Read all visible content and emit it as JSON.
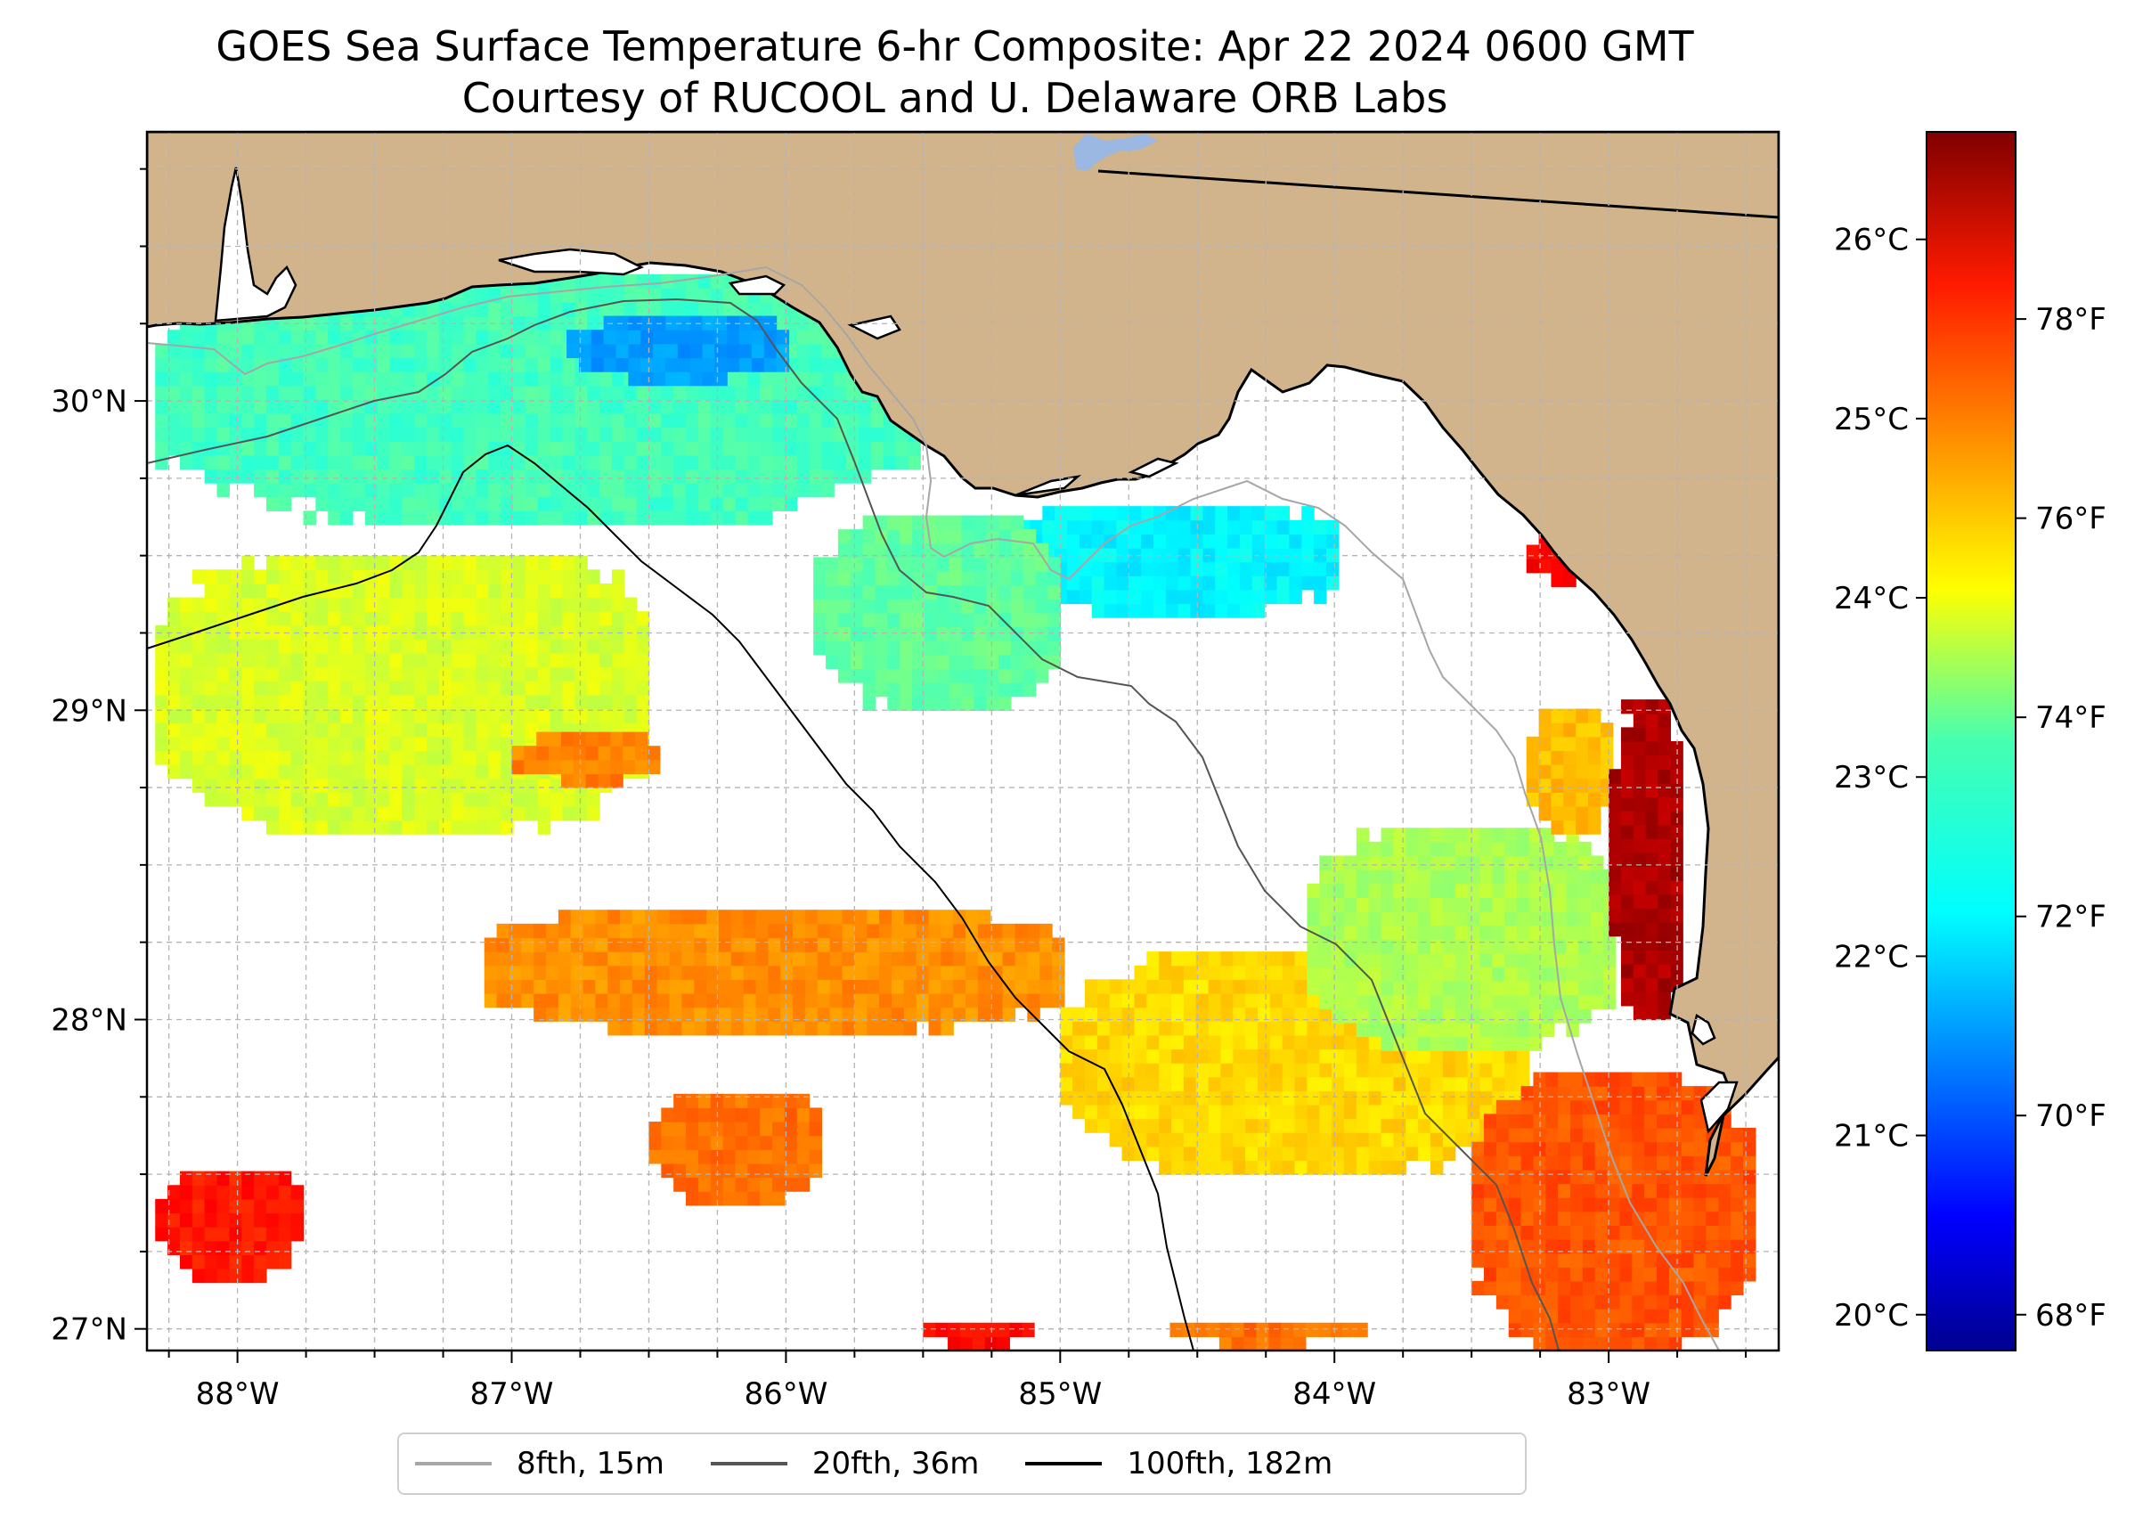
{
  "title": {
    "line1": "GOES Sea Surface Temperature 6-hr Composite: Apr 22 2024 0600 GMT",
    "line2": "Courtesy of RUCOOL and U. Delaware ORB Labs"
  },
  "map": {
    "lon_range": [
      -88.33,
      -82.38
    ],
    "lat_range": [
      26.93,
      30.87
    ],
    "lon_ticks": [
      {
        "value": -88,
        "label": "88°W"
      },
      {
        "value": -87,
        "label": "87°W"
      },
      {
        "value": -86,
        "label": "86°W"
      },
      {
        "value": -85,
        "label": "85°W"
      },
      {
        "value": -84,
        "label": "84°W"
      },
      {
        "value": -83,
        "label": "83°W"
      }
    ],
    "lat_ticks": [
      {
        "value": 27,
        "label": "27°N"
      },
      {
        "value": 28,
        "label": "28°N"
      },
      {
        "value": 29,
        "label": "29°N"
      },
      {
        "value": 30,
        "label": "30°N"
      }
    ],
    "grid": true,
    "colors": {
      "land": "#d2b48c",
      "water": "#ffffff",
      "lake": "#9ab8e2",
      "grid": "#b4b4b4",
      "coastline": "#000000"
    }
  },
  "colorbar": {
    "colormap": "jet",
    "range_c": [
      19.8,
      26.6
    ],
    "celsius_ticks": [
      {
        "value": 20,
        "label": "20°C"
      },
      {
        "value": 21,
        "label": "21°C"
      },
      {
        "value": 22,
        "label": "22°C"
      },
      {
        "value": 23,
        "label": "23°C"
      },
      {
        "value": 24,
        "label": "24°C"
      },
      {
        "value": 25,
        "label": "25°C"
      },
      {
        "value": 26,
        "label": "26°C"
      }
    ],
    "fahrenheit_ticks": [
      {
        "value": 68,
        "label": "68°F"
      },
      {
        "value": 70,
        "label": "70°F"
      },
      {
        "value": 72,
        "label": "72°F"
      },
      {
        "value": 74,
        "label": "74°F"
      },
      {
        "value": 76,
        "label": "76°F"
      },
      {
        "value": 78,
        "label": "78°F"
      }
    ]
  },
  "legend": {
    "items": [
      {
        "label": "8fth, 15m",
        "color": "#a6a6a6"
      },
      {
        "label": "20fth, 36m",
        "color": "#555555"
      },
      {
        "label": "100fth, 182m",
        "color": "#000000"
      }
    ]
  },
  "chart_data": {
    "type": "heatmap",
    "title": "GOES Sea Surface Temperature 6-hr Composite: Apr 22 2024 0600 GMT",
    "subtitle": "Courtesy of RUCOOL and U. Delaware ORB Labs",
    "units": "°C",
    "xlim": [
      -88.33,
      -82.38
    ],
    "ylim": [
      26.93,
      30.87
    ],
    "colorbar_range": [
      19.8,
      26.6
    ],
    "grid": true,
    "legend_position": "bottom-center",
    "sst_regions": [
      {
        "lon": [
          -88.3,
          -85.5
        ],
        "lat": [
          29.6,
          30.4
        ],
        "sst_c": 22.8
      },
      {
        "lon": [
          -86.8,
          -86.0
        ],
        "lat": [
          30.05,
          30.25
        ],
        "sst_c": 21.7
      },
      {
        "lon": [
          -85.2,
          -84.0
        ],
        "lat": [
          29.3,
          29.65
        ],
        "sst_c": 22.3
      },
      {
        "lon": [
          -85.9,
          -85.0
        ],
        "lat": [
          29.0,
          29.6
        ],
        "sst_c": 23.0
      },
      {
        "lon": [
          -88.3,
          -86.5
        ],
        "lat": [
          28.6,
          29.5
        ],
        "sst_c": 23.8
      },
      {
        "lon": [
          -87.0,
          -86.5
        ],
        "lat": [
          28.75,
          28.9
        ],
        "sst_c": 24.9
      },
      {
        "lon": [
          -87.1,
          -85.0
        ],
        "lat": [
          27.95,
          28.35
        ],
        "sst_c": 24.8
      },
      {
        "lon": [
          -86.5,
          -85.9
        ],
        "lat": [
          27.4,
          27.75
        ],
        "sst_c": 25.0
      },
      {
        "lon": [
          -85.0,
          -83.3
        ],
        "lat": [
          27.5,
          28.2
        ],
        "sst_c": 24.3
      },
      {
        "lon": [
          -84.1,
          -83.0
        ],
        "lat": [
          27.9,
          28.6
        ],
        "sst_c": 23.5
      },
      {
        "lon": [
          -83.3,
          -83.0
        ],
        "lat": [
          28.6,
          29.0
        ],
        "sst_c": 24.5
      },
      {
        "lon": [
          -83.0,
          -82.75
        ],
        "lat": [
          28.0,
          29.0
        ],
        "sst_c": 26.3
      },
      {
        "lon": [
          -83.5,
          -82.5
        ],
        "lat": [
          26.93,
          27.8
        ],
        "sst_c": 25.2
      },
      {
        "lon": [
          -88.3,
          -87.8
        ],
        "lat": [
          27.15,
          27.5
        ],
        "sst_c": 25.6
      },
      {
        "lon": [
          -85.5,
          -85.1
        ],
        "lat": [
          26.93,
          27.0
        ],
        "sst_c": 25.7
      },
      {
        "lon": [
          -84.6,
          -83.9
        ],
        "lat": [
          26.93,
          27.0
        ],
        "sst_c": 25.0
      },
      {
        "lon": [
          -83.3,
          -83.1
        ],
        "lat": [
          29.4,
          29.55
        ],
        "sst_c": 25.8
      }
    ]
  }
}
